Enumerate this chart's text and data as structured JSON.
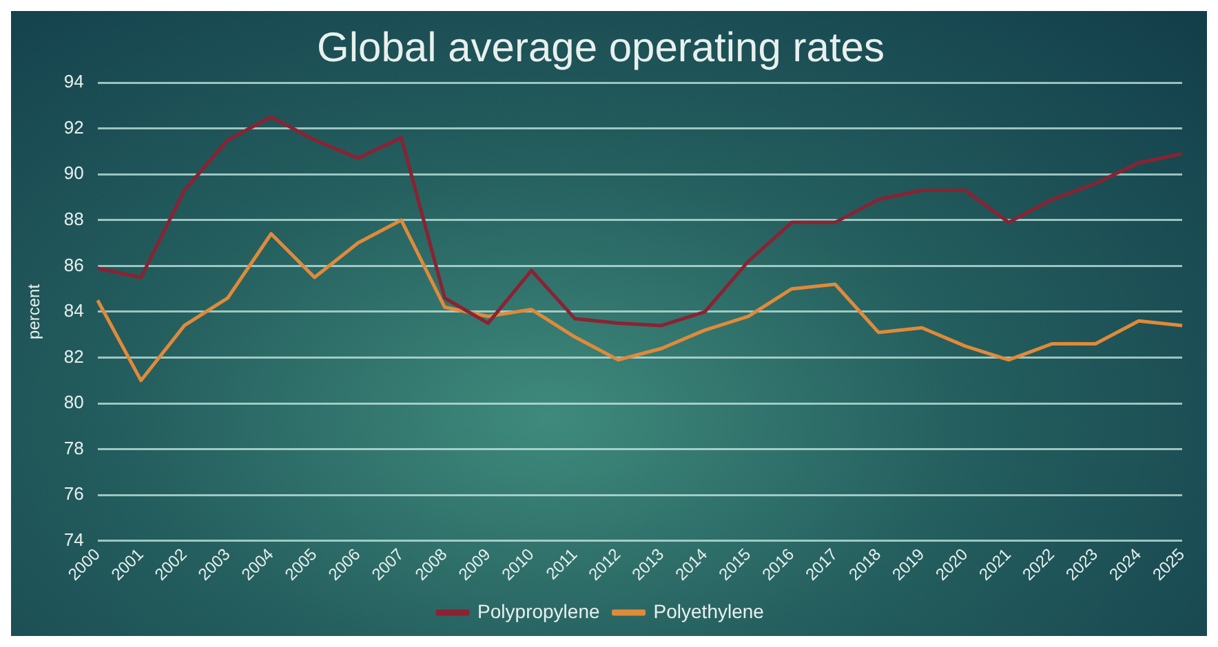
{
  "chart_data": {
    "type": "line",
    "title": "Global average operating rates",
    "ylabel": "percent",
    "categories": [
      "2000",
      "2001",
      "2002",
      "2003",
      "2004",
      "2005",
      "2006",
      "2007",
      "2008",
      "2009",
      "2010",
      "2011",
      "2012",
      "2013",
      "2014",
      "2015",
      "2016",
      "2017",
      "2018",
      "2019",
      "2020",
      "2021",
      "2022",
      "2023",
      "2024",
      "2025"
    ],
    "series": [
      {
        "name": "Polypropylene",
        "color": "#8b2232",
        "values": [
          85.9,
          85.5,
          89.3,
          91.5,
          92.5,
          91.5,
          90.7,
          91.6,
          84.6,
          83.5,
          85.8,
          83.7,
          83.5,
          83.4,
          84.0,
          86.2,
          87.9,
          87.9,
          88.9,
          89.3,
          89.3,
          87.9,
          88.9,
          89.6,
          90.5,
          90.9
        ]
      },
      {
        "name": "Polyethylene",
        "color": "#e08a3a",
        "values": [
          84.5,
          81.0,
          83.4,
          84.6,
          87.4,
          85.5,
          87.0,
          88.0,
          84.2,
          83.8,
          84.1,
          82.9,
          81.9,
          82.4,
          83.2,
          83.8,
          85.0,
          85.2,
          83.1,
          83.3,
          82.5,
          81.9,
          82.6,
          82.6,
          83.6,
          83.4
        ]
      }
    ],
    "ylim": [
      74,
      94
    ],
    "yticks": [
      74,
      76,
      78,
      80,
      82,
      84,
      86,
      88,
      90,
      92,
      94
    ],
    "grid": "y",
    "legend": "bottom",
    "marker": "none",
    "line_style": "solid"
  }
}
